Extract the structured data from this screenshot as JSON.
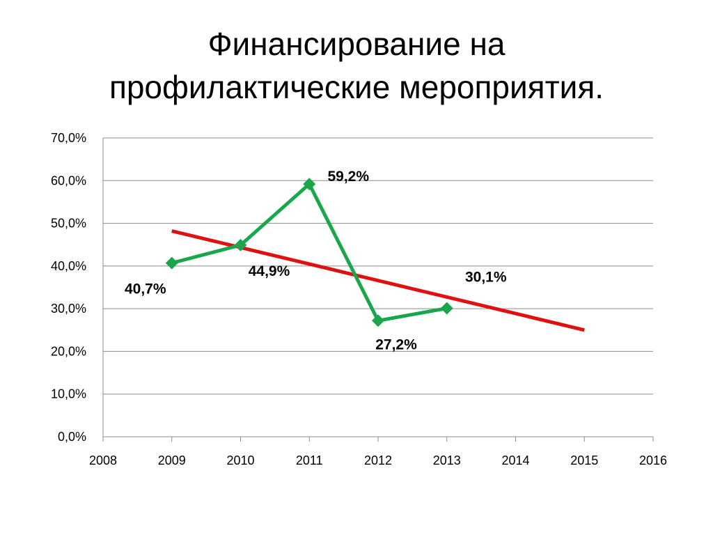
{
  "slide": {
    "title_line1": "Финансирование на",
    "title_line2": "профилактические мероприятия."
  },
  "chart_data": {
    "type": "scatter",
    "title": "Финансирование на профилактические мероприятия.",
    "xlim": [
      2008,
      2016
    ],
    "ylim": [
      0,
      70
    ],
    "x_ticks": [
      2008,
      2009,
      2010,
      2011,
      2012,
      2013,
      2014,
      2015,
      2016
    ],
    "x_tick_labels": [
      "2008",
      "2009",
      "2010",
      "2011",
      "2012",
      "2013",
      "2014",
      "2015",
      "2016"
    ],
    "y_ticks": [
      0,
      10,
      20,
      30,
      40,
      50,
      60,
      70
    ],
    "y_tick_labels": [
      "0,0%",
      "10,0%",
      "20,0%",
      "30,0%",
      "40,0%",
      "50,0%",
      "60,0%",
      "70,0%"
    ],
    "grid": true,
    "legend": "none",
    "series": [
      {
        "type": "line-markers",
        "color": "#1aa64b",
        "marker": "diamond",
        "x": [
          2009,
          2010,
          2011,
          2012,
          2013
        ],
        "y": [
          40.7,
          44.9,
          59.2,
          27.2,
          30.1
        ],
        "labels": [
          "40,7%",
          "44,9%",
          "59,2%",
          "27,2%",
          "30,1%"
        ]
      },
      {
        "type": "trendline",
        "color": "#e01010",
        "x": [
          2009,
          2015
        ],
        "y": [
          48.2,
          25.0
        ]
      }
    ]
  }
}
